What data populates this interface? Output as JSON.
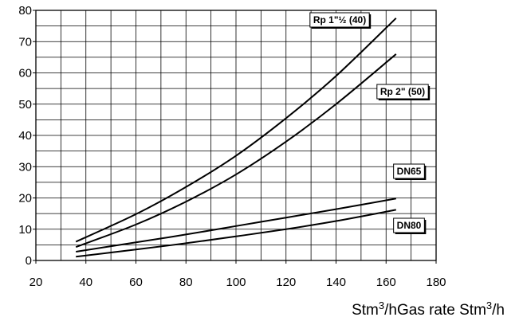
{
  "chart_data": {
    "type": "line",
    "xlabel_parts": [
      "Stm",
      "3",
      "/hGas rate Stm",
      "3",
      "/h"
    ],
    "ylabel": "",
    "xlim": [
      20,
      180
    ],
    "ylim": [
      0,
      80
    ],
    "x_ticks": [
      20,
      40,
      60,
      80,
      100,
      120,
      140,
      160,
      180
    ],
    "y_ticks": [
      0,
      10,
      20,
      30,
      40,
      50,
      60,
      70,
      80
    ],
    "x_minor_grid_step": 10,
    "y_minor_grid_step": 5,
    "grid": true,
    "series": [
      {
        "name": "Rp 1\"½ (40)",
        "x": [
          36,
          60,
          80,
          100,
          120,
          140,
          164
        ],
        "y": [
          6.0,
          14.8,
          23.5,
          33.5,
          45.5,
          59.0,
          77.5
        ]
      },
      {
        "name": "Rp 2\" (50)",
        "x": [
          36,
          60,
          80,
          100,
          120,
          140,
          164
        ],
        "y": [
          4.3,
          11.5,
          18.8,
          27.5,
          38.0,
          50.0,
          66.0
        ]
      },
      {
        "name": "DN65",
        "x": [
          36,
          60,
          80,
          100,
          120,
          140,
          164
        ],
        "y": [
          2.8,
          5.8,
          8.3,
          11.0,
          13.7,
          16.4,
          19.8
        ]
      },
      {
        "name": "DN80",
        "x": [
          36,
          60,
          80,
          100,
          120,
          140,
          164
        ],
        "y": [
          1.2,
          3.5,
          5.5,
          7.7,
          10.0,
          12.6,
          16.2
        ]
      }
    ]
  }
}
